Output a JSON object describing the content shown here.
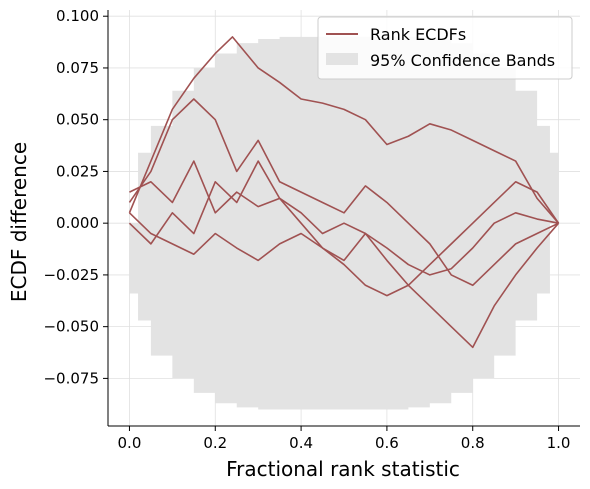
{
  "chart_data": {
    "type": "line",
    "xlabel": "Fractional rank statistic",
    "ylabel": "ECDF difference",
    "xlim": [
      -0.05,
      1.05
    ],
    "ylim": [
      -0.098,
      0.103
    ],
    "x_ticks": [
      "0.0",
      "0.2",
      "0.4",
      "0.6",
      "0.8",
      "1.0"
    ],
    "y_ticks": [
      "0.100",
      "0.075",
      "0.050",
      "0.025",
      "0.000",
      "−0.025",
      "−0.050",
      "−0.075"
    ],
    "grid": true,
    "legend": {
      "placement": "top-right",
      "entries": [
        {
          "label": "Rank ECDFs",
          "kind": "line",
          "color": "#a05252"
        },
        {
          "label": "95% Confidence Bands",
          "kind": "patch",
          "color": "#e3e3e3"
        }
      ]
    },
    "confidence_band": {
      "color": "#e3e3e3",
      "x": [
        0.0,
        0.02,
        0.05,
        0.1,
        0.15,
        0.2,
        0.25,
        0.3,
        0.35,
        0.4,
        0.45,
        0.5,
        0.55,
        0.6,
        0.65,
        0.7,
        0.75,
        0.8,
        0.85,
        0.9,
        0.95,
        0.98,
        1.0
      ],
      "upper": [
        0.0,
        0.034,
        0.047,
        0.064,
        0.075,
        0.082,
        0.087,
        0.089,
        0.09,
        0.09,
        0.09,
        0.09,
        0.09,
        0.09,
        0.09,
        0.089,
        0.087,
        0.082,
        0.075,
        0.064,
        0.047,
        0.034,
        0.0
      ],
      "lower": [
        0.0,
        -0.034,
        -0.047,
        -0.064,
        -0.075,
        -0.082,
        -0.087,
        -0.089,
        -0.09,
        -0.09,
        -0.09,
        -0.09,
        -0.09,
        -0.09,
        -0.09,
        -0.089,
        -0.087,
        -0.082,
        -0.075,
        -0.064,
        -0.047,
        -0.034,
        0.0
      ]
    },
    "series_color": "#a05252",
    "series": [
      {
        "x": [
          0.0,
          0.05,
          0.1,
          0.15,
          0.2,
          0.24,
          0.3,
          0.35,
          0.4,
          0.45,
          0.5,
          0.55,
          0.6,
          0.65,
          0.7,
          0.75,
          0.8,
          0.85,
          0.9,
          0.95,
          1.0
        ],
        "y": [
          0.005,
          0.03,
          0.055,
          0.07,
          0.082,
          0.09,
          0.075,
          0.068,
          0.06,
          0.058,
          0.055,
          0.05,
          0.038,
          0.042,
          0.048,
          0.045,
          0.04,
          0.035,
          0.03,
          0.012,
          0.0
        ]
      },
      {
        "x": [
          0.0,
          0.05,
          0.1,
          0.15,
          0.2,
          0.25,
          0.3,
          0.35,
          0.4,
          0.45,
          0.5,
          0.55,
          0.6,
          0.65,
          0.7,
          0.75,
          0.8,
          0.85,
          0.9,
          0.95,
          1.0
        ],
        "y": [
          0.01,
          0.025,
          0.05,
          0.06,
          0.05,
          0.025,
          0.04,
          0.02,
          0.015,
          0.01,
          0.005,
          0.018,
          0.01,
          0.0,
          -0.01,
          -0.025,
          -0.03,
          -0.02,
          -0.01,
          -0.005,
          0.0
        ]
      },
      {
        "x": [
          0.0,
          0.05,
          0.1,
          0.15,
          0.2,
          0.25,
          0.3,
          0.35,
          0.4,
          0.45,
          0.5,
          0.55,
          0.6,
          0.65,
          0.7,
          0.75,
          0.8,
          0.85,
          0.9,
          0.95,
          1.0
        ],
        "y": [
          0.015,
          0.02,
          0.01,
          0.03,
          0.005,
          0.015,
          0.008,
          0.012,
          0.005,
          -0.005,
          0.0,
          -0.005,
          -0.018,
          -0.03,
          -0.04,
          -0.05,
          -0.06,
          -0.04,
          -0.025,
          -0.012,
          0.0
        ]
      },
      {
        "x": [
          0.0,
          0.05,
          0.1,
          0.15,
          0.2,
          0.25,
          0.3,
          0.35,
          0.4,
          0.45,
          0.5,
          0.55,
          0.6,
          0.65,
          0.7,
          0.75,
          0.8,
          0.85,
          0.9,
          0.95,
          1.0
        ],
        "y": [
          0.0,
          -0.01,
          0.005,
          -0.005,
          0.02,
          0.01,
          0.03,
          0.012,
          0.0,
          -0.012,
          -0.018,
          -0.005,
          -0.012,
          -0.02,
          -0.025,
          -0.022,
          -0.012,
          0.0,
          0.005,
          0.002,
          0.0
        ]
      },
      {
        "x": [
          0.0,
          0.05,
          0.1,
          0.15,
          0.2,
          0.25,
          0.3,
          0.35,
          0.4,
          0.45,
          0.5,
          0.55,
          0.6,
          0.65,
          0.7,
          0.75,
          0.8,
          0.85,
          0.9,
          0.95,
          1.0
        ],
        "y": [
          0.005,
          -0.005,
          -0.01,
          -0.015,
          -0.005,
          -0.012,
          -0.018,
          -0.01,
          -0.005,
          -0.012,
          -0.02,
          -0.03,
          -0.035,
          -0.03,
          -0.02,
          -0.01,
          0.0,
          0.01,
          0.02,
          0.015,
          0.0
        ]
      }
    ]
  }
}
